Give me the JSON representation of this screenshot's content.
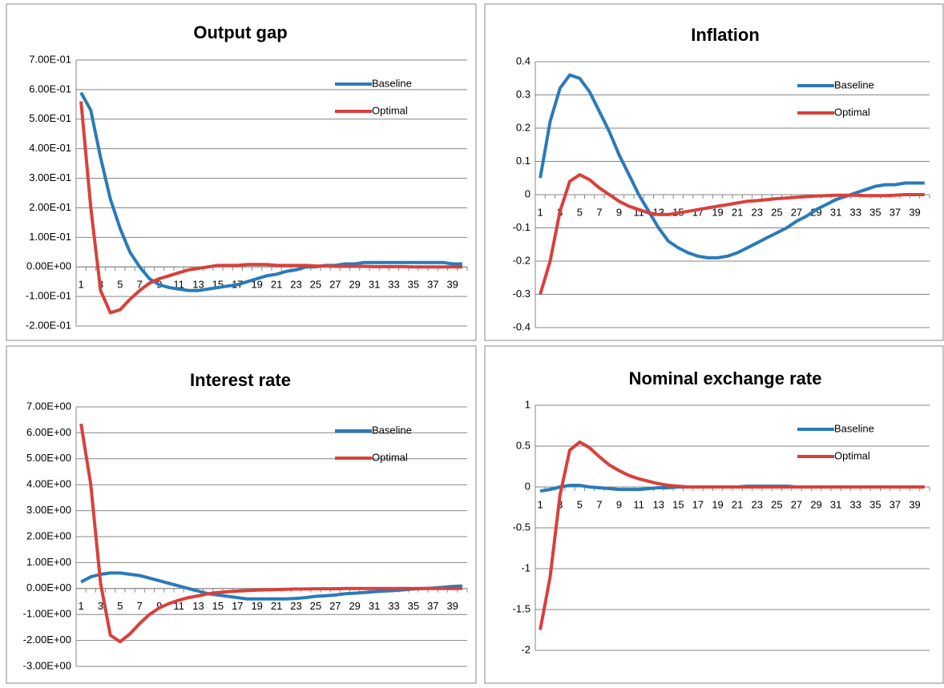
{
  "chart_data": [
    {
      "type": "line",
      "title": "Output gap",
      "legend": "upper right",
      "grid": true,
      "categories": [
        1,
        null,
        3,
        null,
        5,
        null,
        7,
        null,
        9,
        null,
        11,
        null,
        13,
        null,
        15,
        null,
        17,
        null,
        19,
        null,
        21,
        null,
        23,
        null,
        25,
        null,
        27,
        null,
        29,
        null,
        31,
        null,
        33,
        null,
        35,
        null,
        37,
        null,
        39,
        null
      ],
      "ylim": [
        -0.2,
        0.7
      ],
      "yticks": [
        {
          "value": -0.2,
          "label": "-2.00E-01"
        },
        {
          "value": -0.1,
          "label": "-1.00E-01"
        },
        {
          "value": 0,
          "label": "0.00E+00"
        },
        {
          "value": 0.1,
          "label": "1.00E-01"
        },
        {
          "value": 0.2,
          "label": "2.00E-01"
        },
        {
          "value": 0.3,
          "label": "3.00E-01"
        },
        {
          "value": 0.4,
          "label": "4.00E-01"
        },
        {
          "value": 0.5,
          "label": "5.00E-01"
        },
        {
          "value": 0.6,
          "label": "6.00E-01"
        },
        {
          "value": 0.7,
          "label": "7.00E-01"
        }
      ],
      "series": [
        {
          "name": "Baseline",
          "color": "#2a7ab9",
          "values": [
            0.59,
            0.53,
            0.37,
            0.23,
            0.13,
            0.05,
            0,
            -0.04,
            -0.06,
            -0.07,
            -0.075,
            -0.08,
            -0.08,
            -0.075,
            -0.07,
            -0.065,
            -0.06,
            -0.05,
            -0.04,
            -0.03,
            -0.025,
            -0.015,
            -0.01,
            0,
            0,
            0.005,
            0.005,
            0.01,
            0.01,
            0.015,
            0.015,
            0.015,
            0.015,
            0.015,
            0.015,
            0.015,
            0.015,
            0.015,
            0.01,
            0.01
          ]
        },
        {
          "name": "Optimal",
          "color": "#d9403a",
          "values": [
            0.56,
            0.2,
            -0.08,
            -0.155,
            -0.145,
            -0.11,
            -0.08,
            -0.055,
            -0.04,
            -0.03,
            -0.02,
            -0.01,
            -0.005,
            0,
            0.005,
            0.005,
            0.005,
            0.008,
            0.008,
            0.008,
            0.005,
            0.005,
            0.005,
            0.005,
            0.003,
            0.003,
            0.002,
            0.002,
            0.002,
            0.002,
            0.001,
            0.001,
            0.001,
            0.001,
            0,
            0,
            0,
            0,
            0,
            0
          ]
        }
      ]
    },
    {
      "type": "line",
      "title": "Inflation",
      "legend": "upper right",
      "grid": true,
      "categories": [
        1,
        null,
        3,
        null,
        5,
        null,
        7,
        null,
        9,
        null,
        11,
        null,
        13,
        null,
        15,
        null,
        17,
        null,
        19,
        null,
        21,
        null,
        23,
        null,
        25,
        null,
        27,
        null,
        29,
        null,
        31,
        null,
        33,
        null,
        35,
        null,
        37,
        null,
        39,
        null
      ],
      "ylim": [
        -0.4,
        0.4
      ],
      "yticks": [
        -0.4,
        -0.3,
        -0.2,
        -0.1,
        0,
        0.1,
        0.2,
        0.3,
        0.4
      ],
      "series": [
        {
          "name": "Baseline",
          "color": "#2a7ab9",
          "values": [
            0.05,
            0.22,
            0.32,
            0.36,
            0.35,
            0.31,
            0.25,
            0.19,
            0.12,
            0.06,
            0,
            -0.05,
            -0.1,
            -0.14,
            -0.16,
            -0.175,
            -0.185,
            -0.19,
            -0.19,
            -0.185,
            -0.175,
            -0.16,
            -0.145,
            -0.13,
            -0.115,
            -0.1,
            -0.08,
            -0.065,
            -0.045,
            -0.03,
            -0.015,
            -0.005,
            0.005,
            0.015,
            0.025,
            0.03,
            0.03,
            0.035,
            0.035,
            0.035
          ]
        },
        {
          "name": "Optimal",
          "color": "#d9403a",
          "values": [
            -0.3,
            -0.2,
            -0.05,
            0.04,
            0.06,
            0.045,
            0.02,
            0,
            -0.02,
            -0.035,
            -0.045,
            -0.055,
            -0.06,
            -0.06,
            -0.055,
            -0.05,
            -0.045,
            -0.04,
            -0.035,
            -0.03,
            -0.025,
            -0.02,
            -0.018,
            -0.015,
            -0.012,
            -0.01,
            -0.008,
            -0.006,
            -0.004,
            -0.003,
            -0.002,
            -0.002,
            -0.002,
            -0.003,
            -0.003,
            -0.003,
            -0.002,
            0,
            0,
            0
          ]
        }
      ]
    },
    {
      "type": "line",
      "title": "Interest rate",
      "legend": "upper right",
      "grid": true,
      "categories": [
        1,
        null,
        3,
        null,
        5,
        null,
        7,
        null,
        9,
        null,
        11,
        null,
        13,
        null,
        15,
        null,
        17,
        null,
        19,
        null,
        21,
        null,
        23,
        null,
        25,
        null,
        27,
        null,
        29,
        null,
        31,
        null,
        33,
        null,
        35,
        null,
        37,
        null,
        39,
        null
      ],
      "ylim": [
        -3,
        7
      ],
      "yticks": [
        {
          "value": -3,
          "label": "-3.00E+00"
        },
        {
          "value": -2,
          "label": "-2.00E+00"
        },
        {
          "value": -1,
          "label": "-1.00E+00"
        },
        {
          "value": 0,
          "label": "0.00E+00"
        },
        {
          "value": 1,
          "label": "1.00E+00"
        },
        {
          "value": 2,
          "label": "2.00E+00"
        },
        {
          "value": 3,
          "label": "3.00E+00"
        },
        {
          "value": 4,
          "label": "4.00E+00"
        },
        {
          "value": 5,
          "label": "5.00E+00"
        },
        {
          "value": 6,
          "label": "6.00E+00"
        },
        {
          "value": 7,
          "label": "7.00E+00"
        }
      ],
      "series": [
        {
          "name": "Baseline",
          "color": "#2a7ab9",
          "values": [
            0.25,
            0.45,
            0.55,
            0.6,
            0.6,
            0.55,
            0.5,
            0.4,
            0.3,
            0.2,
            0.1,
            0,
            -0.1,
            -0.2,
            -0.25,
            -0.3,
            -0.35,
            -0.4,
            -0.4,
            -0.4,
            -0.4,
            -0.4,
            -0.38,
            -0.35,
            -0.3,
            -0.28,
            -0.25,
            -0.2,
            -0.18,
            -0.15,
            -0.12,
            -0.1,
            -0.08,
            -0.05,
            -0.02,
            0,
            0.02,
            0.05,
            0.08,
            0.1
          ]
        },
        {
          "name": "Optimal",
          "color": "#d9403a",
          "values": [
            6.35,
            4.0,
            0.2,
            -1.8,
            -2.05,
            -1.75,
            -1.35,
            -1.0,
            -0.75,
            -0.58,
            -0.45,
            -0.35,
            -0.28,
            -0.2,
            -0.15,
            -0.12,
            -0.1,
            -0.08,
            -0.06,
            -0.05,
            -0.04,
            -0.03,
            -0.02,
            -0.02,
            -0.01,
            -0.01,
            -0.01,
            0,
            0,
            0,
            0,
            0,
            0,
            0,
            0,
            0,
            0,
            0,
            0,
            0
          ]
        }
      ]
    },
    {
      "type": "line",
      "title": "Nominal exchange rate",
      "legend": "upper right",
      "grid": true,
      "categories": [
        1,
        null,
        3,
        null,
        5,
        null,
        7,
        null,
        9,
        null,
        11,
        null,
        13,
        null,
        15,
        null,
        17,
        null,
        19,
        null,
        21,
        null,
        23,
        null,
        25,
        null,
        27,
        null,
        29,
        null,
        31,
        null,
        33,
        null,
        35,
        null,
        37,
        null,
        39,
        null
      ],
      "ylim": [
        -2,
        1
      ],
      "yticks": [
        -2,
        -1.5,
        -1,
        -0.5,
        0,
        0.5,
        1
      ],
      "series": [
        {
          "name": "Baseline",
          "color": "#2a7ab9",
          "values": [
            -0.05,
            -0.03,
            0,
            0.02,
            0.02,
            0,
            -0.01,
            -0.02,
            -0.03,
            -0.03,
            -0.03,
            -0.02,
            -0.01,
            -0.01,
            0,
            0,
            0,
            0,
            0,
            0,
            0,
            0.01,
            0.01,
            0.01,
            0.01,
            0.01,
            0,
            0,
            0,
            0,
            0,
            0,
            0,
            0,
            0,
            0,
            0,
            0,
            0,
            0
          ]
        },
        {
          "name": "Optimal",
          "color": "#d9403a",
          "values": [
            -1.75,
            -1.1,
            -0.1,
            0.45,
            0.55,
            0.48,
            0.37,
            0.27,
            0.2,
            0.14,
            0.1,
            0.07,
            0.04,
            0.02,
            0.01,
            0,
            0,
            0,
            0,
            0,
            0,
            0,
            0,
            0,
            0,
            0,
            0,
            0,
            0,
            0,
            0,
            0,
            0,
            0,
            0,
            0,
            0,
            0,
            0,
            0
          ]
        }
      ]
    }
  ]
}
